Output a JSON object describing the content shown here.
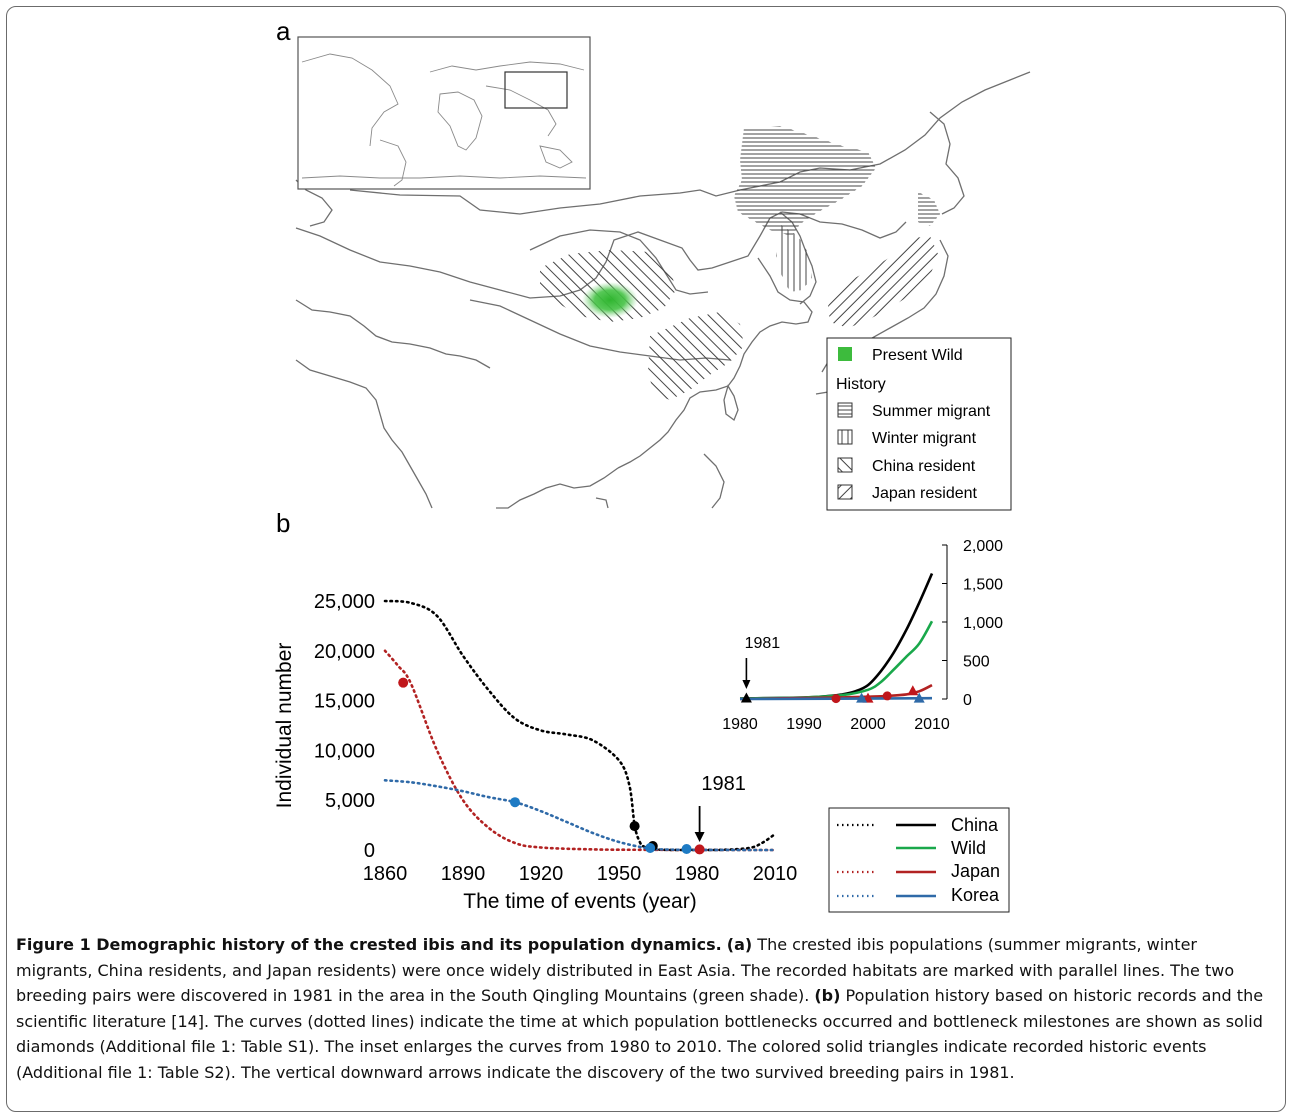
{
  "figure": {
    "panel_a_label": "a",
    "panel_b_label": "b",
    "map_legend": {
      "present": "Present Wild",
      "history_heading": "History",
      "items": [
        "Summer migrant",
        "Winter migrant",
        "China resident",
        "Japan resident"
      ]
    },
    "colors": {
      "china": "#000000",
      "wild": "#1aa84b",
      "japan": "#b22222",
      "japan_dot": "#c0171c",
      "korea": "#2f6aa8",
      "korea_dot": "#1e7bc4",
      "present_wild": "#3dbb3d"
    },
    "chart_legend": [
      "China",
      "Wild",
      "Japan",
      "Korea"
    ]
  },
  "chart_data": [
    {
      "type": "line",
      "title": "",
      "xlabel": "The time of events (year)",
      "ylabel": "Individual number",
      "xlim": [
        1860,
        2010
      ],
      "ylim": [
        0,
        25000
      ],
      "x_ticks": [
        "1860",
        "1890",
        "1920",
        "1950",
        "1980",
        "2010"
      ],
      "y_ticks": [
        "0",
        "5,000",
        "10,000",
        "15,000",
        "20,000",
        "25,000"
      ],
      "annotation": "1981",
      "series": [
        {
          "name": "China",
          "style": "dotted",
          "x": [
            1860,
            1870,
            1880,
            1890,
            1900,
            1910,
            1920,
            1930,
            1940,
            1950,
            1954,
            1956,
            1958,
            1960,
            1965,
            1970,
            1981,
            1990,
            2000,
            2005,
            2010
          ],
          "y": [
            25000,
            24800,
            23500,
            19500,
            16000,
            13200,
            12000,
            11600,
            11000,
            9000,
            6500,
            2500,
            800,
            300,
            50,
            10,
            7,
            20,
            200,
            700,
            1600
          ]
        },
        {
          "name": "Japan",
          "style": "dotted",
          "x": [
            1860,
            1865,
            1870,
            1880,
            1890,
            1900,
            1910,
            1920,
            1940,
            1960,
            1981,
            2010
          ],
          "y": [
            20000,
            18500,
            16700,
            10000,
            5000,
            2200,
            700,
            250,
            60,
            20,
            5,
            0
          ]
        },
        {
          "name": "Korea",
          "style": "dotted",
          "x": [
            1860,
            1870,
            1880,
            1890,
            1900,
            1910,
            1920,
            1930,
            1940,
            1950,
            1960,
            1963,
            1970,
            1980,
            2010
          ],
          "y": [
            7000,
            6800,
            6400,
            5900,
            5300,
            4800,
            3900,
            2800,
            1700,
            800,
            200,
            100,
            40,
            10,
            0
          ]
        }
      ],
      "diamonds": [
        {
          "series": "Japan",
          "x": 1867,
          "y": 16800
        },
        {
          "series": "Korea",
          "x": 1910,
          "y": 4800
        },
        {
          "series": "China",
          "x": 1956,
          "y": 2400
        },
        {
          "series": "China",
          "x": 1963,
          "y": 400
        },
        {
          "series": "Korea",
          "x": 1962,
          "y": 200
        },
        {
          "series": "Korea",
          "x": 1976,
          "y": 100
        },
        {
          "series": "Japan",
          "x": 1981,
          "y": 60
        }
      ]
    },
    {
      "type": "line",
      "title": "",
      "xlim": [
        1980,
        2010
      ],
      "ylim": [
        0,
        2000
      ],
      "x_ticks": [
        "1980",
        "1990",
        "2000",
        "2010"
      ],
      "y_ticks": [
        "0",
        "500",
        "1,000",
        "1,500",
        "2,000"
      ],
      "annotation": "1981",
      "series": [
        {
          "name": "China",
          "style": "solid",
          "x": [
            1980,
            1990,
            1994,
            1996,
            1998,
            2000,
            2002,
            2004,
            2006,
            2008,
            2010
          ],
          "y": [
            7,
            20,
            40,
            60,
            100,
            180,
            360,
            600,
            900,
            1250,
            1630
          ]
        },
        {
          "name": "Wild",
          "style": "solid",
          "x": [
            1980,
            1990,
            1996,
            2000,
            2002,
            2004,
            2006,
            2008,
            2010
          ],
          "y": [
            7,
            20,
            50,
            120,
            220,
            380,
            550,
            720,
            1010
          ]
        },
        {
          "name": "Japan",
          "style": "solid",
          "x": [
            1980,
            1995,
            2000,
            2003,
            2006,
            2008,
            2010
          ],
          "y": [
            0,
            20,
            30,
            40,
            60,
            100,
            180
          ]
        },
        {
          "name": "Korea",
          "style": "solid",
          "x": [
            1980,
            2010
          ],
          "y": [
            0,
            10
          ]
        }
      ],
      "markers": [
        {
          "series": "China",
          "shape": "triangle",
          "x": 1981,
          "y": 7
        },
        {
          "series": "Japan",
          "shape": "circle",
          "x": 1995,
          "y": 5
        },
        {
          "series": "Japan",
          "shape": "circle",
          "x": 2003,
          "y": 40
        },
        {
          "series": "Japan",
          "shape": "triangle",
          "x": 2000,
          "y": 5
        },
        {
          "series": "Japan",
          "shape": "triangle",
          "x": 2007,
          "y": 100
        },
        {
          "series": "Korea",
          "shape": "triangle",
          "x": 1999,
          "y": 5
        },
        {
          "series": "Korea",
          "shape": "triangle",
          "x": 2008,
          "y": 5
        }
      ]
    }
  ],
  "caption": {
    "title": "Figure 1 Demographic history of the crested ibis and its population dynamics.",
    "a_label": "(a)",
    "a_text": " The crested ibis populations (summer migrants, winter migrants, China residents, and Japan residents) were once widely distributed in East Asia. The recorded habitats are marked with parallel lines. The two breeding pairs were discovered in 1981 in the area in the South Qingling Mountains (green shade). ",
    "b_label": "(b)",
    "b_text": " Population history based on historic records and the scientific literature [14]. The curves (dotted lines) indicate the time at which population bottlenecks occurred and bottleneck milestones are shown as solid diamonds (Additional file 1: Table S1). The inset enlarges the curves from 1980 to 2010. The colored solid triangles indicate recorded historic events (Additional file 1: Table S2). The vertical downward arrows indicate the discovery of the two survived breeding pairs in 1981."
  }
}
